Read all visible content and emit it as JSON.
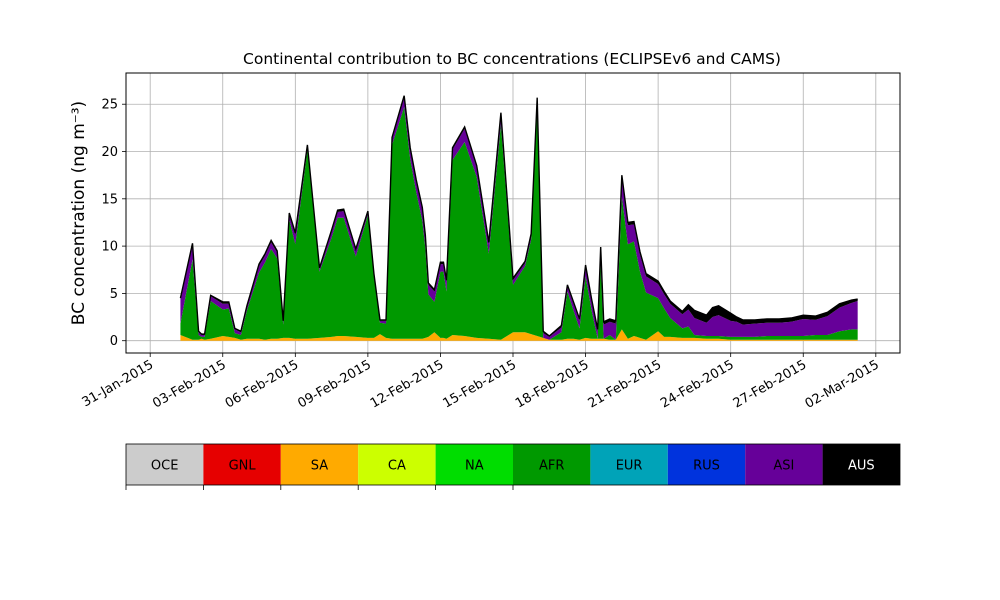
{
  "chart_data": {
    "type": "area",
    "title": "Continental contribution to BC concentrations (ECLIPSEv6 and CAMS)",
    "ylabel": "BC concentration (ng m⁻³)",
    "xlabel": "",
    "x_range": [
      "2015-01-30",
      "2015-03-03"
    ],
    "ylim": [
      -1.3,
      28.3
    ],
    "yticks": [
      0,
      5,
      10,
      15,
      20,
      25
    ],
    "xticks": [
      "2015-01-31",
      "2015-02-03",
      "2015-02-06",
      "2015-02-09",
      "2015-02-12",
      "2015-02-15",
      "2015-02-18",
      "2015-02-21",
      "2015-02-24",
      "2015-02-27",
      "2015-03-02"
    ],
    "xtick_labels": [
      "31-Jan-2015",
      "03-Feb-2015",
      "06-Feb-2015",
      "09-Feb-2015",
      "12-Feb-2015",
      "15-Feb-2015",
      "18-Feb-2015",
      "21-Feb-2015",
      "24-Feb-2015",
      "27-Feb-2015",
      "02-Mar-2015"
    ],
    "grid": true,
    "x": [
      "2015-02-01T06:00",
      "2015-02-01T18:00",
      "2015-02-02T00:00",
      "2015-02-02T03:00",
      "2015-02-02T06:00",
      "2015-02-02T12:00",
      "2015-02-03T00:00",
      "2015-02-03T06:00",
      "2015-02-03T12:00",
      "2015-02-03T18:00",
      "2015-02-04T00:00",
      "2015-02-04T12:00",
      "2015-02-04T18:00",
      "2015-02-05T00:00",
      "2015-02-05T06:00",
      "2015-02-05T12:00",
      "2015-02-05T18:00",
      "2015-02-06T00:00",
      "2015-02-06T12:00",
      "2015-02-07T00:00",
      "2015-02-07T12:00",
      "2015-02-07T18:00",
      "2015-02-08T00:00",
      "2015-02-08T12:00",
      "2015-02-09T00:00",
      "2015-02-09T06:00",
      "2015-02-09T12:00",
      "2015-02-09T18:00",
      "2015-02-10T00:00",
      "2015-02-10T12:00",
      "2015-02-10T18:00",
      "2015-02-11T00:00",
      "2015-02-11T06:00",
      "2015-02-11T09:00",
      "2015-02-11T12:00",
      "2015-02-11T18:00",
      "2015-02-12T00:00",
      "2015-02-12T03:00",
      "2015-02-12T06:00",
      "2015-02-12T12:00",
      "2015-02-13T00:00",
      "2015-02-13T12:00",
      "2015-02-14T00:00",
      "2015-02-14T12:00",
      "2015-02-15T00:00",
      "2015-02-15T12:00",
      "2015-02-15T18:00",
      "2015-02-16T00:00",
      "2015-02-16T06:00",
      "2015-02-16T12:00",
      "2015-02-17T00:00",
      "2015-02-17T06:00",
      "2015-02-17T12:00",
      "2015-02-17T18:00",
      "2015-02-18T00:00",
      "2015-02-18T06:00",
      "2015-02-18T12:00",
      "2015-02-18T15:00",
      "2015-02-18T18:00",
      "2015-02-19T00:00",
      "2015-02-19T06:00",
      "2015-02-19T12:00",
      "2015-02-19T18:00",
      "2015-02-20T00:00",
      "2015-02-20T06:00",
      "2015-02-20T12:00",
      "2015-02-21T00:00",
      "2015-02-21T06:00",
      "2015-02-21T12:00",
      "2015-02-22T00:00",
      "2015-02-22T06:00",
      "2015-02-22T12:00",
      "2015-02-23T00:00",
      "2015-02-23T06:00",
      "2015-02-23T12:00",
      "2015-02-24T00:00",
      "2015-02-24T06:00",
      "2015-02-24T12:00",
      "2015-02-25T00:00",
      "2015-02-25T12:00",
      "2015-02-26T00:00",
      "2015-02-26T12:00",
      "2015-02-27T00:00",
      "2015-02-27T12:00",
      "2015-02-28T00:00",
      "2015-02-28T12:00",
      "2015-03-01T00:00",
      "2015-03-01T06:00"
    ],
    "series": [
      {
        "name": "SA",
        "color": "#ffaa00",
        "values": [
          0.6,
          0.1,
          0.1,
          0.2,
          0.1,
          0.2,
          0.5,
          0.4,
          0.3,
          0.1,
          0.2,
          0.2,
          0.1,
          0.2,
          0.2,
          0.3,
          0.3,
          0.2,
          0.2,
          0.3,
          0.4,
          0.5,
          0.5,
          0.4,
          0.3,
          0.3,
          0.7,
          0.3,
          0.2,
          0.2,
          0.2,
          0.2,
          0.2,
          0.3,
          0.4,
          0.9,
          0.3,
          0.3,
          0.2,
          0.6,
          0.5,
          0.3,
          0.2,
          0.1,
          0.9,
          0.9,
          0.7,
          0.5,
          0.3,
          0.1,
          0.1,
          0.2,
          0.2,
          0.1,
          0.3,
          0.2,
          0.2,
          0.2,
          0.2,
          0.1,
          0.1,
          1.2,
          0.2,
          0.5,
          0.3,
          0.1,
          1.0,
          0.4,
          0.4,
          0.3,
          0.3,
          0.3,
          0.2,
          0.2,
          0.2,
          0.1,
          0.1,
          0.1,
          0.1,
          0.1,
          0.1,
          0.1,
          0.1,
          0.1,
          0.1,
          0.1,
          0.1,
          0.1
        ]
      },
      {
        "name": "AFR",
        "color": "#009900",
        "values": [
          1.2,
          8.5,
          0.5,
          0.2,
          0.3,
          4.0,
          2.8,
          3.0,
          0.5,
          0.5,
          3.0,
          7.0,
          8.2,
          9.5,
          8.5,
          1.4,
          12.5,
          10.0,
          20.0,
          7.0,
          10.5,
          12.5,
          12.5,
          8.5,
          13.0,
          6.5,
          1.2,
          1.5,
          20.5,
          24.5,
          19.0,
          15.5,
          12.5,
          9.5,
          4.5,
          3.2,
          7.0,
          7.0,
          5.0,
          18.5,
          20.5,
          17.0,
          9.0,
          22.8,
          5.0,
          7.0,
          10.0,
          24.5,
          0.0,
          0.0,
          0.8,
          5.0,
          3.0,
          1.2,
          6.5,
          3.0,
          0.0,
          8.0,
          0.0,
          0.5,
          0.0,
          14.0,
          10.0,
          10.0,
          7.0,
          5.0,
          3.5,
          3.0,
          2.0,
          1.0,
          1.2,
          0.3,
          0.3,
          0.3,
          0.3,
          0.3,
          0.3,
          0.3,
          0.3,
          0.4,
          0.4,
          0.4,
          0.4,
          0.5,
          0.5,
          0.9,
          1.1,
          1.1
        ]
      },
      {
        "name": "ASI",
        "color": "#660099",
        "values": [
          2.5,
          1.5,
          0.3,
          0.2,
          0.2,
          0.5,
          0.6,
          0.5,
          0.4,
          0.3,
          0.4,
          0.7,
          0.7,
          0.7,
          0.6,
          0.3,
          0.5,
          1.0,
          0.3,
          0.3,
          0.6,
          0.6,
          0.7,
          0.6,
          0.3,
          0.2,
          0.2,
          0.3,
          0.6,
          1.0,
          1.0,
          1.1,
          1.2,
          1.2,
          1.0,
          1.1,
          0.8,
          0.8,
          1.0,
          1.1,
          1.4,
          1.0,
          1.0,
          1.0,
          0.5,
          0.3,
          0.4,
          0.5,
          0.5,
          0.3,
          0.5,
          0.5,
          0.7,
          0.8,
          1.0,
          1.0,
          0.8,
          1.5,
          1.5,
          1.4,
          1.7,
          2.0,
          2.0,
          1.8,
          1.8,
          1.7,
          1.5,
          1.5,
          1.5,
          1.5,
          1.8,
          1.8,
          1.4,
          2.0,
          2.2,
          1.7,
          1.6,
          1.3,
          1.4,
          1.4,
          1.4,
          1.5,
          1.8,
          1.6,
          2.0,
          2.5,
          2.8,
          3.0
        ]
      },
      {
        "name": "AUS",
        "color": "#000000",
        "values": [
          0.2,
          0.2,
          0.1,
          0.1,
          0.1,
          0.1,
          0.2,
          0.2,
          0.1,
          0.1,
          0.1,
          0.2,
          0.2,
          0.2,
          0.2,
          0.1,
          0.2,
          0.2,
          0.2,
          0.1,
          0.2,
          0.2,
          0.2,
          0.2,
          0.1,
          0.1,
          0.1,
          0.1,
          0.2,
          0.2,
          0.2,
          0.2,
          0.2,
          0.2,
          0.2,
          0.2,
          0.2,
          0.2,
          0.2,
          0.2,
          0.2,
          0.2,
          0.2,
          0.2,
          0.2,
          0.2,
          0.2,
          0.2,
          0.2,
          0.1,
          0.2,
          0.2,
          0.2,
          0.2,
          0.2,
          0.2,
          0.2,
          0.2,
          0.3,
          0.3,
          0.3,
          0.3,
          0.3,
          0.3,
          0.3,
          0.3,
          0.3,
          0.3,
          0.3,
          0.3,
          0.5,
          0.8,
          0.8,
          1.0,
          1.0,
          0.8,
          0.5,
          0.5,
          0.4,
          0.4,
          0.4,
          0.4,
          0.4,
          0.4,
          0.4,
          0.4,
          0.3,
          0.2
        ]
      }
    ]
  },
  "colorbar": {
    "entries": [
      {
        "label": "OCE",
        "color": "#cccccc"
      },
      {
        "label": "GNL",
        "color": "#e60000"
      },
      {
        "label": "SA",
        "color": "#ffaa00"
      },
      {
        "label": "CA",
        "color": "#ccff00"
      },
      {
        "label": "NA",
        "color": "#00dd00"
      },
      {
        "label": "AFR",
        "color": "#009900"
      },
      {
        "label": "EUR",
        "color": "#00a3b8"
      },
      {
        "label": "RUS",
        "color": "#0033dd"
      },
      {
        "label": "ASI",
        "color": "#660099"
      },
      {
        "label": "AUS",
        "color": "#000000"
      }
    ]
  }
}
